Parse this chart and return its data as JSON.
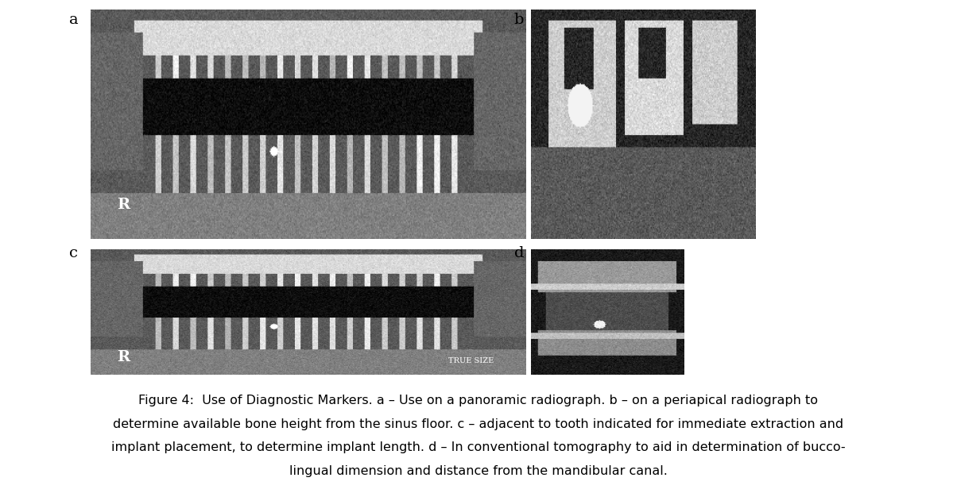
{
  "figure_width": 12.04,
  "figure_height": 6.21,
  "bg_color": "#ffffff",
  "caption_line1": "Figure 4:  Use of Diagnostic Markers. a – Use on a panoramic radiograph. b – on a periapical radiograph to",
  "caption_line2": "determine available bone height from the sinus floor. c – adjacent to tooth indicated for immediate extraction and",
  "caption_line3": "implant placement, to determine implant length. d – In conventional tomography to aid in determination of bucco-",
  "caption_line4": "lingual dimension and distance from the mandibular canal.",
  "caption_fontsize": 11.5,
  "label_fontsize": 14,
  "panel_labels": [
    "a",
    "b",
    "c",
    "d"
  ],
  "panel_label_color": "#000000"
}
